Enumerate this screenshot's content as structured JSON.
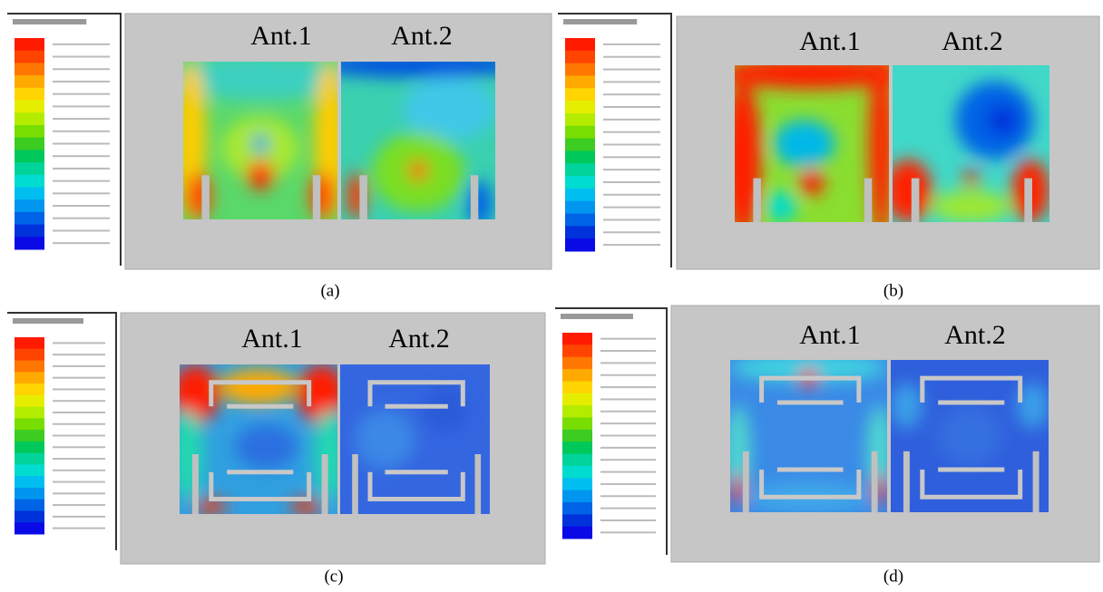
{
  "panels": [
    {
      "caption": "(a)",
      "antennas": [
        "Ant.1",
        "Ant.2"
      ]
    },
    {
      "caption": "(b)",
      "antennas": [
        "Ant.1",
        "Ant.2"
      ]
    },
    {
      "caption": "(c)",
      "antennas": [
        "Ant.1",
        "Ant.2"
      ]
    },
    {
      "caption": "(d)",
      "antennas": [
        "Ant.1",
        "Ant.2"
      ]
    }
  ]
}
